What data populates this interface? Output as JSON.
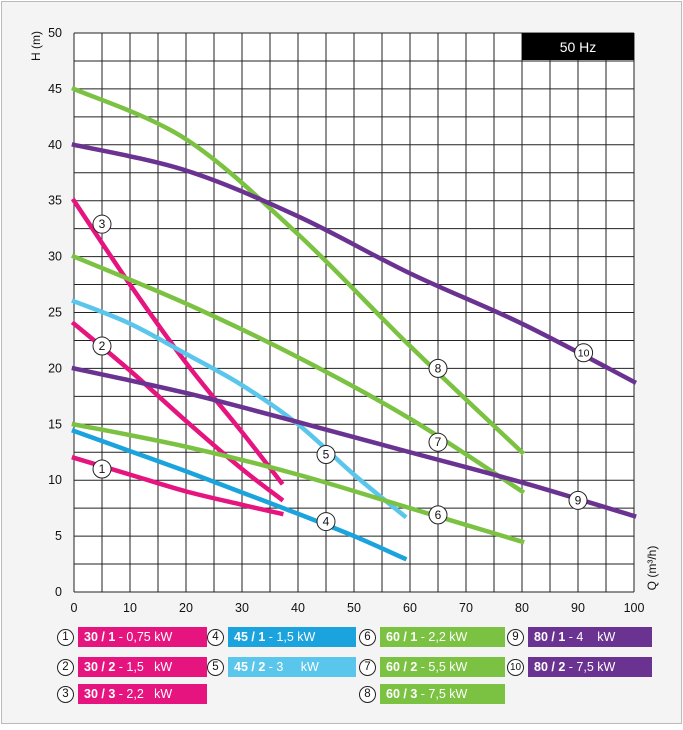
{
  "chart_data": {
    "type": "line",
    "badge": "50 Hz",
    "ylabel": "H (m)",
    "xlabel": "Q (m³/h)",
    "xlim": [
      0,
      100
    ],
    "ylim": [
      0,
      50
    ],
    "x_ticks": [
      0,
      10,
      20,
      30,
      40,
      50,
      60,
      70,
      80,
      90,
      100
    ],
    "y_ticks": [
      0,
      5,
      10,
      15,
      20,
      25,
      30,
      35,
      40,
      45,
      50
    ],
    "grid": true,
    "series": [
      {
        "id": "1",
        "number": "1",
        "model": "30 / 1",
        "power": " - 0,75 kW",
        "color": "#e6147f",
        "points": [
          [
            0,
            12
          ],
          [
            10,
            10.5
          ],
          [
            20,
            9
          ],
          [
            30,
            7.8
          ],
          [
            37,
            7
          ]
        ],
        "marker": [
          5,
          11
        ]
      },
      {
        "id": "2",
        "number": "2",
        "model": "30 / 2",
        "power": " - 1,5   kW",
        "color": "#e6147f",
        "points": [
          [
            0,
            24
          ],
          [
            10,
            19.8
          ],
          [
            20,
            15.3
          ],
          [
            30,
            11
          ],
          [
            37,
            8.3
          ]
        ],
        "marker": [
          5,
          22
        ]
      },
      {
        "id": "3",
        "number": "3",
        "model": "30 / 3",
        "power": " - 2,2   kW",
        "color": "#e6147f",
        "points": [
          [
            0,
            35
          ],
          [
            10,
            27.5
          ],
          [
            20,
            20.5
          ],
          [
            30,
            14.3
          ],
          [
            37,
            9.8
          ]
        ],
        "marker": [
          5,
          32.9
        ]
      },
      {
        "id": "4",
        "number": "4",
        "model": "45 / 1",
        "power": " - 1,5 kW",
        "color": "#1aa3dd",
        "points": [
          [
            0,
            14.4
          ],
          [
            10,
            12.6
          ],
          [
            20,
            10.8
          ],
          [
            30,
            8.9
          ],
          [
            40,
            7
          ],
          [
            50,
            5
          ],
          [
            59,
            3
          ]
        ],
        "marker": [
          45,
          6.3
        ]
      },
      {
        "id": "5",
        "number": "5",
        "model": "45 / 2",
        "power": " - 3     kW",
        "color": "#5bc6ec",
        "points": [
          [
            0,
            26
          ],
          [
            10,
            24
          ],
          [
            20,
            21.3
          ],
          [
            30,
            18.5
          ],
          [
            40,
            15
          ],
          [
            50,
            10.5
          ],
          [
            59,
            6.8
          ]
        ],
        "marker": [
          45,
          12.3
        ]
      },
      {
        "id": "6",
        "number": "6",
        "model": "60 / 1",
        "power": " - 2,2 kW",
        "color": "#7cc242",
        "points": [
          [
            0,
            15
          ],
          [
            20,
            13
          ],
          [
            40,
            10.5
          ],
          [
            60,
            7.5
          ],
          [
            80,
            4.5
          ]
        ],
        "marker": [
          65,
          6.9
        ]
      },
      {
        "id": "7",
        "number": "7",
        "model": "60 / 2",
        "power": " - 5,5 kW",
        "color": "#7cc242",
        "points": [
          [
            0,
            30
          ],
          [
            20,
            25.8
          ],
          [
            40,
            21
          ],
          [
            60,
            15.5
          ],
          [
            80,
            9
          ]
        ],
        "marker": [
          65,
          13.4
        ]
      },
      {
        "id": "8",
        "number": "8",
        "model": "60 / 3",
        "power": " - 7,5 kW",
        "color": "#7cc242",
        "points": [
          [
            0,
            45
          ],
          [
            20,
            40.5
          ],
          [
            40,
            32
          ],
          [
            60,
            22
          ],
          [
            80,
            12.5
          ]
        ],
        "marker": [
          65,
          20
        ]
      },
      {
        "id": "9",
        "number": "9",
        "model": "80 / 1",
        "power": " - 4    kW",
        "color": "#6a3291",
        "points": [
          [
            0,
            20
          ],
          [
            20,
            17.8
          ],
          [
            40,
            15.2
          ],
          [
            60,
            12.5
          ],
          [
            80,
            9.8
          ],
          [
            100,
            6.8
          ]
        ],
        "marker": [
          90,
          8.2
        ]
      },
      {
        "id": "10",
        "number": "10",
        "model": "80 / 2",
        "power": " - 7,5 kW",
        "color": "#6a3291",
        "points": [
          [
            0,
            40
          ],
          [
            20,
            37.7
          ],
          [
            40,
            33.6
          ],
          [
            60,
            28.5
          ],
          [
            80,
            24
          ],
          [
            100,
            18.8
          ]
        ],
        "marker": [
          91,
          21.4
        ]
      }
    ]
  }
}
